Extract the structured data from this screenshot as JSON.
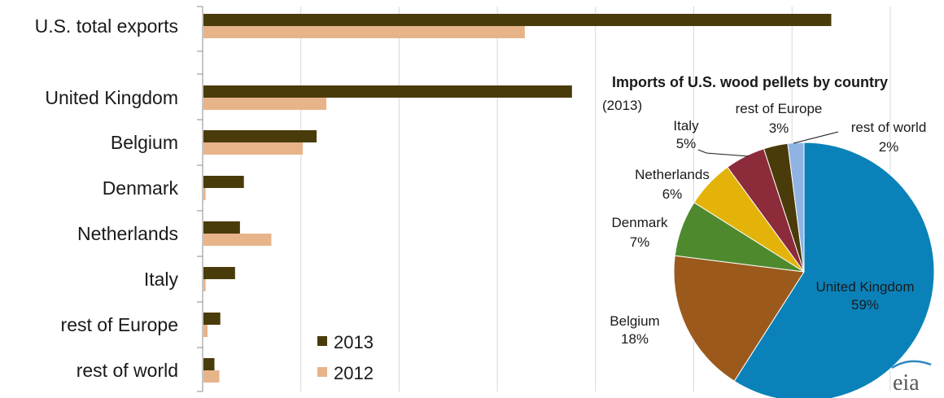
{
  "chart_data": [
    {
      "type": "bar",
      "orientation": "horizontal",
      "categories": [
        "U.S. total exports",
        "United Kingdom",
        "Belgium",
        "Denmark",
        "Netherlands",
        "Italy",
        "rest of Europe",
        "rest of world"
      ],
      "series": [
        {
          "name": "2013",
          "color": "#4a3b0a",
          "values": [
            3.2,
            1.88,
            0.58,
            0.21,
            0.19,
            0.165,
            0.09,
            0.06
          ]
        },
        {
          "name": "2012",
          "color": "#e7b48a",
          "values": [
            1.64,
            0.63,
            0.51,
            0.015,
            0.35,
            0.015,
            0.025,
            0.085
          ]
        }
      ],
      "xlim": [
        0,
        3.5
      ],
      "x_gridlines": [
        0.5,
        1.0,
        1.5,
        2.0,
        2.5,
        3.0,
        3.5
      ],
      "grid": true,
      "legend_position": "bottom-center"
    },
    {
      "type": "pie",
      "title": "Imports of U.S. wood pellets by country",
      "subtitle": "(2013)",
      "slices": [
        {
          "label": "United Kingdom",
          "pct_label": "59%",
          "value": 59,
          "color": "#0a82b9"
        },
        {
          "label": "Belgium",
          "pct_label": "18%",
          "value": 18,
          "color": "#9b5a1c"
        },
        {
          "label": "Denmark",
          "pct_label": "7%",
          "value": 7,
          "color": "#4e8a2d"
        },
        {
          "label": "Netherlands",
          "pct_label": "6%",
          "value": 6,
          "color": "#e3b309"
        },
        {
          "label": "Italy",
          "pct_label": "5%",
          "value": 5,
          "color": "#8c2b3a"
        },
        {
          "label": "rest of Europe",
          "pct_label": "3%",
          "value": 3,
          "color": "#4a3b0a"
        },
        {
          "label": "rest of world",
          "pct_label": "2%",
          "value": 2,
          "color": "#8fb3e3"
        }
      ]
    }
  ],
  "logo_text": "eia"
}
